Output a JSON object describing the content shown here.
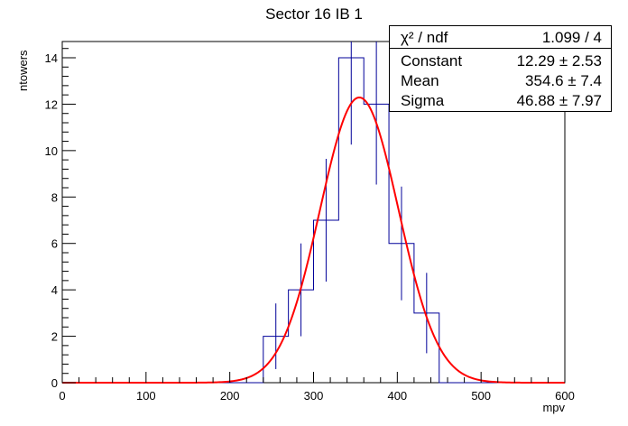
{
  "chart_data": {
    "type": "histogram",
    "title": "Sector 16 IB 1",
    "xlabel": "mpv",
    "ylabel": "ntowers",
    "xlim": [
      0,
      600
    ],
    "ylim": [
      0,
      14.7
    ],
    "xticks": [
      0,
      100,
      200,
      300,
      400,
      500,
      600
    ],
    "yticks": [
      0,
      2,
      4,
      6,
      8,
      10,
      12,
      14
    ],
    "bin_width": 30,
    "bins": [
      {
        "x_low": 240,
        "x_high": 270,
        "count": 2
      },
      {
        "x_low": 270,
        "x_high": 300,
        "count": 4
      },
      {
        "x_low": 300,
        "x_high": 330,
        "count": 7
      },
      {
        "x_low": 330,
        "x_high": 360,
        "count": 14
      },
      {
        "x_low": 360,
        "x_high": 390,
        "count": 12
      },
      {
        "x_low": 390,
        "x_high": 420,
        "count": 6
      },
      {
        "x_low": 420,
        "x_high": 450,
        "count": 3
      }
    ],
    "fit": {
      "function": "gaus",
      "constant": 12.29,
      "mean": 354.6,
      "sigma": 46.88
    },
    "colors": {
      "histogram": "#000099",
      "fit": "#ff0000",
      "axis": "#000000"
    }
  },
  "stats": [
    {
      "key": "χ² / ndf",
      "value": "1.099 / 4"
    },
    {
      "key": "Constant",
      "value": "12.29 ± 2.53"
    },
    {
      "key": "Mean",
      "value": "354.6 ± 7.4"
    },
    {
      "key": "Sigma",
      "value": "46.88 ± 7.97"
    }
  ]
}
